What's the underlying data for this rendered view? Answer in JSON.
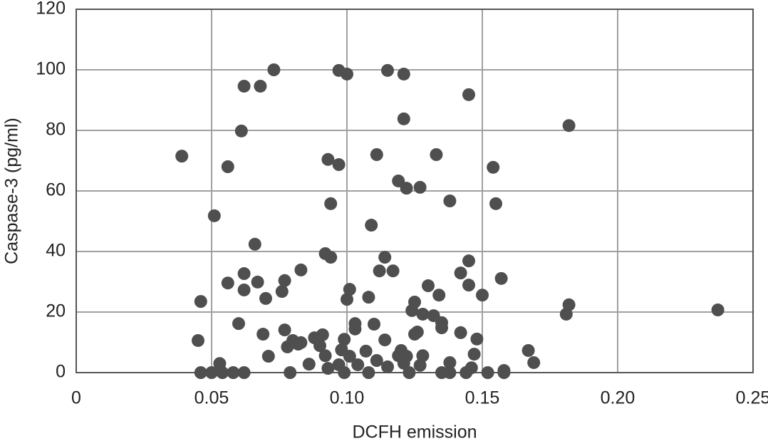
{
  "chart_data": {
    "type": "scatter",
    "x_label": "DCFH emission",
    "y_label": "Caspase-3 (pg/ml)",
    "color": "#4f4f4f",
    "grid": true,
    "xlim": [
      0,
      0.25
    ],
    "ylim": [
      0,
      120
    ],
    "xticks": [
      0,
      0.05,
      {
        "value": 0.1,
        "label": "0.10"
      },
      0.15,
      {
        "value": 0.2,
        "label": "0.20"
      },
      0.25
    ],
    "yticks": [
      0,
      20,
      40,
      60,
      80,
      100,
      120
    ],
    "x": [
      0.039,
      0.046,
      0.045,
      0.046,
      0.051,
      0.053,
      0.05,
      0.054,
      0.056,
      0.056,
      0.058,
      0.06,
      0.061,
      0.062,
      0.062,
      0.062,
      0.062,
      0.066,
      0.068,
      0.073,
      0.067,
      0.069,
      0.07,
      0.071,
      0.076,
      0.077,
      0.077,
      0.078,
      0.079,
      0.08,
      0.082,
      0.083,
      0.083,
      0.086,
      0.088,
      0.09,
      0.091,
      0.092,
      0.092,
      0.093,
      0.093,
      0.094,
      0.094,
      0.097,
      0.097,
      0.097,
      0.098,
      0.099,
      0.099,
      0.1,
      0.1,
      0.101,
      0.101,
      0.103,
      0.103,
      0.104,
      0.107,
      0.108,
      0.108,
      0.109,
      0.11,
      0.111,
      0.111,
      0.112,
      0.114,
      0.114,
      0.115,
      0.115,
      0.117,
      0.119,
      0.119,
      0.12,
      0.121,
      0.121,
      0.121,
      0.122,
      0.122,
      0.123,
      0.124,
      0.125,
      0.125,
      0.126,
      0.127,
      0.127,
      0.128,
      0.128,
      0.13,
      0.132,
      0.133,
      0.134,
      0.135,
      0.135,
      0.135,
      0.138,
      0.138,
      0.138,
      0.142,
      0.142,
      0.145,
      0.145,
      0.144,
      0.145,
      0.146,
      0.147,
      0.148,
      0.15,
      0.152,
      0.154,
      0.155,
      0.158,
      0.158,
      0.157,
      0.167,
      0.169,
      0.181,
      0.182,
      0.182,
      0.237
    ],
    "values": [
      71.5,
      23.5,
      10.6,
      0,
      51.8,
      3,
      0,
      0,
      68,
      29.6,
      0,
      16.2,
      79.8,
      94.6,
      32.7,
      27.3,
      0,
      42.4,
      94.6,
      100,
      29.9,
      12.7,
      24.5,
      5.4,
      26.8,
      30.4,
      14.1,
      8.5,
      0,
      10.6,
      9.4,
      9.9,
      33.9,
      2.8,
      11.5,
      8.9,
      12.5,
      39.3,
      5.6,
      70.4,
      1.4,
      55.8,
      38.1,
      99.8,
      68.7,
      2.6,
      7.5,
      11,
      0,
      98.6,
      24.2,
      5.4,
      27.5,
      16.2,
      14.4,
      2.6,
      7.1,
      24.9,
      0,
      48.7,
      16,
      72,
      4,
      33.6,
      38.1,
      10.8,
      99.8,
      1.9,
      33.6,
      63.3,
      5.6,
      7.3,
      3.1,
      83.8,
      98.6,
      5.4,
      60.9,
      0,
      20.5,
      23.3,
      12.7,
      13.4,
      61.2,
      2.4,
      5.6,
      19.3,
      28.7,
      18.8,
      72,
      25.6,
      0,
      14.8,
      16.5,
      0,
      56.7,
      3.3,
      13.2,
      32.9,
      91.8,
      36.9,
      0,
      28.9,
      1.6,
      6.1,
      11.1,
      25.6,
      0,
      67.8,
      55.8,
      0.7,
      0,
      31.1,
      7.3,
      3.3,
      19.3,
      22.4,
      81.6,
      20.7
    ]
  }
}
